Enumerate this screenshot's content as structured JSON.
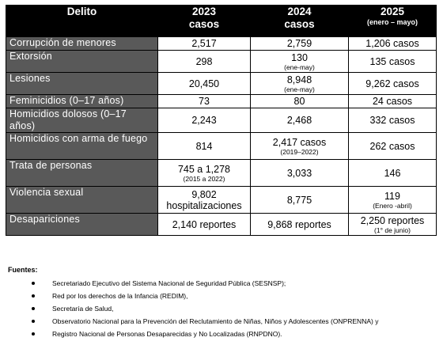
{
  "table": {
    "headers": {
      "delito": "Delito",
      "y2023": "2023",
      "y2023_sub": "casos",
      "y2024": "2024",
      "y2024_sub": "casos",
      "y2025": "2025",
      "y2025_sub": "(enero – mayo)"
    },
    "rows": [
      {
        "label": "Corrupción de menores",
        "v2023": "2,517",
        "v2023_note": "",
        "v2024": "2,759",
        "v2024_note": "",
        "v2025": "1,206 casos",
        "v2025_note": ""
      },
      {
        "label": "Extorsión",
        "v2023": "298",
        "v2023_note": "",
        "v2024": "130",
        "v2024_note": "(ene-may)",
        "v2025": "135 casos",
        "v2025_note": ""
      },
      {
        "label": "Lesiones",
        "v2023": "20,450",
        "v2023_note": "",
        "v2024": "8,948",
        "v2024_note": "(ene-may)",
        "v2025": "9,262 casos",
        "v2025_note": ""
      },
      {
        "label": "Feminicidios (0–17 años)",
        "v2023": "73",
        "v2023_note": "",
        "v2024": "80",
        "v2024_note": "",
        "v2025": "24 casos",
        "v2025_note": ""
      },
      {
        "label": "Homicidios dolosos (0–17 años)",
        "v2023": "2,243",
        "v2023_note": "",
        "v2024": "2,468",
        "v2024_note": "",
        "v2025": "332 casos",
        "v2025_note": ""
      },
      {
        "label": "Homicidios con arma de fuego",
        "v2023": "814",
        "v2023_note": "",
        "v2024": "2,417 casos",
        "v2024_note": "(2019–2022)",
        "v2025": "262 casos",
        "v2025_note": ""
      },
      {
        "label": "Trata de personas",
        "v2023": "745 a 1,278",
        "v2023_note": "(2015 a 2022)",
        "v2024": "3,033",
        "v2024_note": "",
        "v2025": "146",
        "v2025_note": ""
      },
      {
        "label": "Violencia sexual",
        "v2023": "9,802 hospitalizaciones",
        "v2023_note": "",
        "v2024": "8,775",
        "v2024_note": "",
        "v2025": "119",
        "v2025_note": "(Enero -abril)"
      },
      {
        "label": "Desapariciones",
        "v2023": "2,140 reportes",
        "v2023_note": "",
        "v2024": "9,868 reportes",
        "v2024_note": "",
        "v2025": "2,250 reportes",
        "v2025_note": "(1° de junio)"
      }
    ]
  },
  "sources": {
    "title": "Fuentes:",
    "items": [
      "Secretariado Ejecutivo del Sistema Nacional de Seguridad Pública (SESNSP);",
      "Red por los derechos de la Infancia (REDIM),",
      "Secretaría de Salud,",
      "Observatorio Nacional para la Prevención del Reclutamiento de Niñas, Niños y Adolescentes (ONPRENNA) y",
      "Registro Nacional de Personas Desaparecidas y No Localizadas (RNPDNO)."
    ]
  },
  "colors": {
    "header_bg": "#000000",
    "row_label_bg": "#595959",
    "row_label_text": "#ffffff"
  }
}
